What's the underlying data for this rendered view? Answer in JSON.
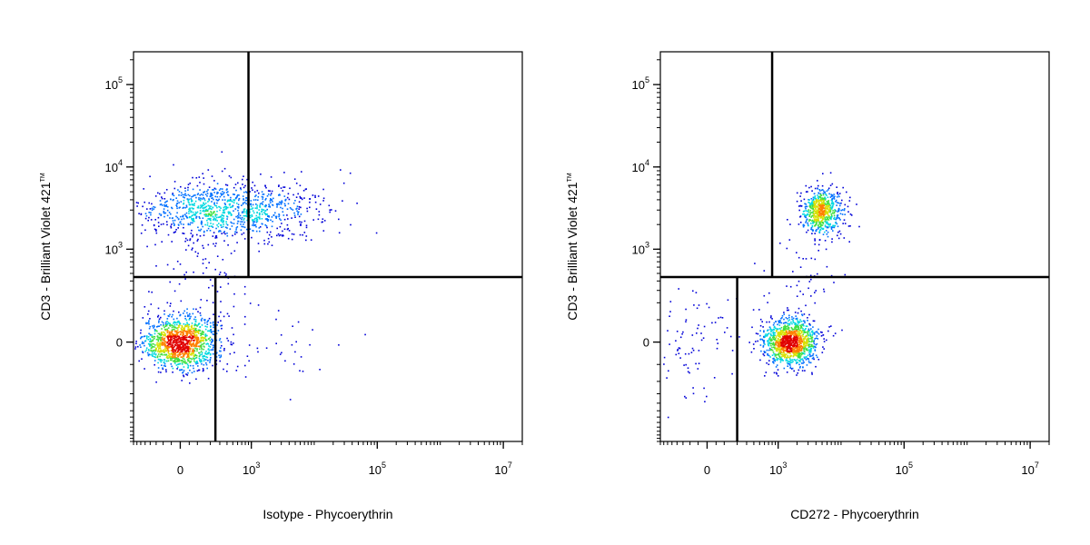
{
  "chart_data": [
    {
      "type": "scatter",
      "style": "density-dot-plot",
      "xlabel": "Isotype - Phycoerythrin",
      "ylabel": "CD3 - Brilliant Violet 421",
      "ylabel_mark": "TM",
      "x_axis": {
        "scale": "biexponential",
        "ticks": [
          {
            "value": 0,
            "label": "0"
          },
          {
            "value": 1000,
            "base": "10",
            "exp": "3"
          },
          {
            "value": 100000,
            "base": "10",
            "exp": "5"
          },
          {
            "value": 10000000,
            "base": "10",
            "exp": "7"
          }
        ]
      },
      "y_axis": {
        "scale": "biexponential",
        "ticks": [
          {
            "value": 0,
            "label": "0"
          },
          {
            "value": 1000,
            "base": "10",
            "exp": "3"
          },
          {
            "value": 10000,
            "base": "10",
            "exp": "4"
          },
          {
            "value": 100000,
            "base": "10",
            "exp": "5"
          }
        ]
      },
      "gates": {
        "y_split": 450,
        "x_split_upper": 900,
        "x_split_lower": 250
      },
      "populations": [
        {
          "x": 0,
          "y": 0,
          "count": 1300,
          "sx": 0.3,
          "sy": 0.16
        },
        {
          "x": 200,
          "y": 3000,
          "count": 750,
          "sx": 0.55,
          "sy": 0.17
        },
        {
          "x": 2500,
          "y": 3000,
          "count": 280,
          "sx": 0.5,
          "sy": 0.2
        },
        {
          "x": 150,
          "y": 400,
          "count": 90,
          "sx": 0.4,
          "sy": 0.55
        },
        {
          "x": 2000,
          "y": 0,
          "count": 40,
          "sx": 0.55,
          "sy": 0.3
        }
      ],
      "density_colors": [
        "#0000d8",
        "#0070ff",
        "#00d8e0",
        "#40e040",
        "#d8e000",
        "#ff8000",
        "#e00000"
      ]
    },
    {
      "type": "scatter",
      "style": "density-dot-plot",
      "xlabel": "CD272 - Phycoerythrin",
      "ylabel": "CD3 - Brilliant Violet 421",
      "ylabel_mark": "TM",
      "x_axis": {
        "scale": "biexponential",
        "ticks": [
          {
            "value": 0,
            "label": "0"
          },
          {
            "value": 1000,
            "base": "10",
            "exp": "3"
          },
          {
            "value": 100000,
            "base": "10",
            "exp": "5"
          },
          {
            "value": 10000000,
            "base": "10",
            "exp": "7"
          }
        ]
      },
      "y_axis": {
        "scale": "biexponential",
        "ticks": [
          {
            "value": 0,
            "label": "0"
          },
          {
            "value": 1000,
            "base": "10",
            "exp": "3"
          },
          {
            "value": 10000,
            "base": "10",
            "exp": "4"
          },
          {
            "value": 100000,
            "base": "10",
            "exp": "5"
          }
        ]
      },
      "gates": {
        "y_split": 450,
        "x_split_upper": 800,
        "x_split_lower": 200
      },
      "populations": [
        {
          "x": 1500,
          "y": 0,
          "count": 1200,
          "sx": 0.22,
          "sy": 0.14
        },
        {
          "x": 5000,
          "y": 3000,
          "count": 650,
          "sx": 0.16,
          "sy": 0.14
        },
        {
          "x": -200,
          "y": 0,
          "count": 120,
          "sx": 0.55,
          "sy": 0.35
        },
        {
          "x": 2500,
          "y": 400,
          "count": 70,
          "sx": 0.3,
          "sy": 0.5
        }
      ],
      "density_colors": [
        "#0000d8",
        "#0070ff",
        "#00d8e0",
        "#40e040",
        "#d8e000",
        "#ff8000",
        "#e00000"
      ]
    }
  ]
}
